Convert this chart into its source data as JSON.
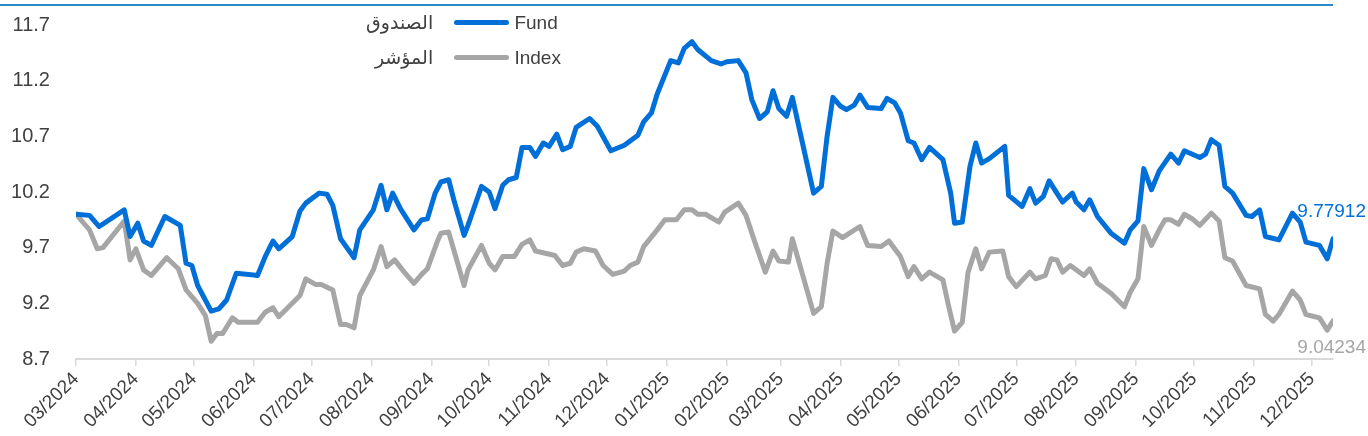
{
  "chart_data": {
    "type": "line",
    "xlim": [
      "2024-03-01",
      "2025-12-12"
    ],
    "xticks": [
      {
        "value": "2024-03-01",
        "label": "03/2024"
      },
      {
        "value": "2024-04-01",
        "label": "04/2024"
      },
      {
        "value": "2024-05-01",
        "label": "05/2024"
      },
      {
        "value": "2024-06-01",
        "label": "06/2024"
      },
      {
        "value": "2024-07-01",
        "label": "07/2024"
      },
      {
        "value": "2024-08-01",
        "label": "08/2024"
      },
      {
        "value": "2024-09-01",
        "label": "09/2024"
      },
      {
        "value": "2024-10-01",
        "label": "10/2024"
      },
      {
        "value": "2024-11-01",
        "label": "11/2024"
      },
      {
        "value": "2024-12-01",
        "label": "12/2024"
      },
      {
        "value": "2025-01-01",
        "label": "01/2025"
      },
      {
        "value": "2025-02-01",
        "label": "02/2025"
      },
      {
        "value": "2025-03-01",
        "label": "03/2025"
      },
      {
        "value": "2025-04-01",
        "label": "04/2025"
      },
      {
        "value": "2025-05-01",
        "label": "05/2025"
      },
      {
        "value": "2025-06-01",
        "label": "06/2025"
      },
      {
        "value": "2025-07-01",
        "label": "07/2025"
      },
      {
        "value": "2025-08-01",
        "label": "08/2025"
      },
      {
        "value": "2025-09-01",
        "label": "09/2025"
      },
      {
        "value": "2025-10-01",
        "label": "10/2025"
      },
      {
        "value": "2025-11-01",
        "label": "11/2025"
      },
      {
        "value": "2025-12-01",
        "label": "12/2025"
      }
    ],
    "ylim": [
      8.7,
      11.7
    ],
    "yticks": [
      8.7,
      9.2,
      9.7,
      10.2,
      10.7,
      11.2,
      11.7
    ],
    "legend": "top left",
    "series": [
      {
        "name": "الصندوق Fund",
        "color": "#0070d8",
        "x": [
          "2024-03-01",
          "2024-03-08",
          "2024-03-13",
          "2024-03-26",
          "2024-03-29",
          "2024-04-02",
          "2024-04-05",
          "2024-04-09",
          "2024-04-16",
          "2024-04-24",
          "2024-04-27",
          "2024-04-30",
          "2024-05-03",
          "2024-05-10",
          "2024-05-14",
          "2024-05-18",
          "2024-05-23",
          "2024-06-03",
          "2024-06-07",
          "2024-06-11",
          "2024-06-14",
          "2024-06-21",
          "2024-06-25",
          "2024-06-28",
          "2024-07-05",
          "2024-07-09",
          "2024-07-12",
          "2024-07-16",
          "2024-07-23",
          "2024-07-26",
          "2024-08-02",
          "2024-08-06",
          "2024-08-09",
          "2024-08-12",
          "2024-08-16",
          "2024-08-23",
          "2024-08-27",
          "2024-08-30",
          "2024-09-03",
          "2024-09-06",
          "2024-09-10",
          "2024-09-13",
          "2024-09-18",
          "2024-09-20",
          "2024-09-27",
          "2024-10-01",
          "2024-10-04",
          "2024-10-08",
          "2024-10-11",
          "2024-10-15",
          "2024-10-18",
          "2024-10-22",
          "2024-10-25",
          "2024-10-29",
          "2024-11-01",
          "2024-11-05",
          "2024-11-08",
          "2024-11-12",
          "2024-11-15",
          "2024-11-22",
          "2024-11-26",
          "2024-12-03",
          "2024-12-10",
          "2024-12-17",
          "2024-12-20",
          "2024-12-24",
          "2024-12-27",
          "2025-01-03",
          "2025-01-07",
          "2025-01-10",
          "2025-01-14",
          "2025-01-17",
          "2025-01-24",
          "2025-01-29",
          "2025-02-01",
          "2025-02-07",
          "2025-02-11",
          "2025-02-14",
          "2025-02-18",
          "2025-02-22",
          "2025-02-25",
          "2025-02-28",
          "2025-03-04",
          "2025-03-07",
          "2025-03-18",
          "2025-03-22",
          "2025-03-25",
          "2025-03-28",
          "2025-04-01",
          "2025-04-04",
          "2025-04-08",
          "2025-04-11",
          "2025-04-15",
          "2025-04-22",
          "2025-04-25",
          "2025-04-29",
          "2025-05-02",
          "2025-05-06",
          "2025-05-09",
          "2025-05-13",
          "2025-05-17",
          "2025-05-24",
          "2025-05-28",
          "2025-05-30",
          "2025-06-03",
          "2025-06-07",
          "2025-06-10",
          "2025-06-13",
          "2025-06-17",
          "2025-06-25",
          "2025-06-27",
          "2025-07-04",
          "2025-07-08",
          "2025-07-11",
          "2025-07-15",
          "2025-07-18",
          "2025-07-22",
          "2025-07-25",
          "2025-07-30",
          "2025-08-01",
          "2025-08-05",
          "2025-08-08",
          "2025-08-12",
          "2025-08-19",
          "2025-08-26",
          "2025-08-29",
          "2025-09-02",
          "2025-09-05",
          "2025-09-09",
          "2025-09-13",
          "2025-09-19",
          "2025-09-23",
          "2025-09-26",
          "2025-10-04",
          "2025-10-07",
          "2025-10-10",
          "2025-10-14",
          "2025-10-17",
          "2025-10-21",
          "2025-10-28",
          "2025-10-31",
          "2025-11-04",
          "2025-11-07",
          "2025-11-14",
          "2025-11-21",
          "2025-11-25",
          "2025-11-28",
          "2025-12-05",
          "2025-12-09",
          "2025-12-12"
        ],
        "values": [
          10.0,
          9.99,
          9.89,
          10.04,
          9.8,
          9.92,
          9.76,
          9.72,
          9.98,
          9.9,
          9.56,
          9.54,
          9.36,
          9.13,
          9.15,
          9.23,
          9.47,
          9.45,
          9.62,
          9.76,
          9.69,
          9.8,
          10.03,
          10.1,
          10.19,
          10.18,
          10.08,
          9.78,
          9.61,
          9.86,
          10.04,
          10.26,
          10.04,
          10.19,
          10.05,
          9.86,
          9.95,
          9.96,
          10.19,
          10.29,
          10.31,
          10.11,
          9.81,
          9.9,
          10.25,
          10.2,
          10.05,
          10.26,
          10.31,
          10.33,
          10.6,
          10.6,
          10.52,
          10.64,
          10.61,
          10.72,
          10.58,
          10.61,
          10.78,
          10.86,
          10.79,
          10.57,
          10.62,
          10.71,
          10.83,
          10.91,
          11.08,
          11.38,
          11.36,
          11.49,
          11.55,
          11.48,
          11.38,
          11.35,
          11.37,
          11.38,
          11.27,
          11.03,
          10.86,
          10.92,
          11.11,
          10.95,
          10.88,
          11.05,
          10.19,
          10.25,
          10.7,
          11.05,
          10.97,
          10.94,
          10.98,
          11.07,
          10.96,
          10.95,
          11.04,
          11.0,
          10.91,
          10.66,
          10.64,
          10.49,
          10.6,
          10.49,
          10.19,
          9.92,
          9.93,
          10.43,
          10.64,
          10.46,
          10.5,
          10.61,
          10.17,
          10.07,
          10.23,
          10.1,
          10.16,
          10.3,
          10.19,
          10.11,
          10.19,
          10.11,
          10.04,
          10.13,
          9.98,
          9.83,
          9.74,
          9.86,
          9.94,
          10.41,
          10.22,
          10.39,
          10.54,
          10.46,
          10.57,
          10.51,
          10.54,
          10.67,
          10.62,
          10.25,
          10.19,
          9.99,
          9.98,
          10.04,
          9.8,
          9.77,
          10.01,
          9.93,
          9.75,
          9.72,
          9.6,
          9.77912
        ],
        "value_labels": [
          null,
          null,
          null,
          null,
          null,
          null,
          null,
          null,
          null,
          null,
          null,
          null,
          null,
          null,
          null,
          null,
          null,
          null,
          null,
          null,
          null,
          null,
          null,
          null,
          null,
          null,
          null,
          null,
          null,
          null,
          null,
          null,
          null,
          null,
          null,
          null,
          null,
          null,
          null,
          null,
          null,
          null,
          null,
          null,
          null,
          null,
          null,
          null,
          null,
          null,
          null,
          null,
          null,
          null,
          null,
          null,
          null,
          null,
          null,
          null,
          null,
          null,
          null,
          null,
          null,
          null,
          null,
          null,
          null,
          null,
          null,
          null,
          null,
          null,
          null,
          null,
          null,
          null,
          null,
          null,
          null,
          null,
          null,
          null,
          null,
          null,
          null,
          null,
          null,
          null,
          null,
          null,
          null,
          null,
          null,
          null,
          null,
          null,
          null,
          null,
          null,
          null,
          null,
          null,
          null,
          null,
          null,
          null,
          null,
          null,
          null,
          null,
          null,
          null,
          null,
          null,
          null,
          null,
          null,
          null,
          null,
          null,
          null,
          null,
          null,
          null,
          null,
          null,
          null,
          null,
          null,
          null,
          null,
          null,
          null,
          null,
          null,
          null,
          null,
          null,
          null,
          null,
          null,
          null,
          null,
          null,
          null,
          null,
          null,
          "9.77912"
        ]
      },
      {
        "name": "المؤشر Index",
        "color": "#a6a6a6",
        "x": [
          "2024-03-01",
          "2024-03-08",
          "2024-03-12",
          "2024-03-15",
          "2024-03-26",
          "2024-03-29",
          "2024-04-01",
          "2024-04-05",
          "2024-04-09",
          "2024-04-17",
          "2024-04-23",
          "2024-04-27",
          "2024-05-03",
          "2024-05-07",
          "2024-05-10",
          "2024-05-13",
          "2024-05-16",
          "2024-05-21",
          "2024-05-24",
          "2024-06-03",
          "2024-06-07",
          "2024-06-11",
          "2024-06-14",
          "2024-06-21",
          "2024-06-25",
          "2024-06-28",
          "2024-07-03",
          "2024-07-06",
          "2024-07-12",
          "2024-07-16",
          "2024-07-19",
          "2024-07-23",
          "2024-07-26",
          "2024-08-02",
          "2024-08-06",
          "2024-08-09",
          "2024-08-13",
          "2024-08-18",
          "2024-08-23",
          "2024-08-27",
          "2024-08-30",
          "2024-09-04",
          "2024-09-06",
          "2024-09-10",
          "2024-09-18",
          "2024-09-20",
          "2024-09-27",
          "2024-10-01",
          "2024-10-04",
          "2024-10-08",
          "2024-10-14",
          "2024-10-18",
          "2024-10-22",
          "2024-10-25",
          "2024-11-04",
          "2024-11-08",
          "2024-11-12",
          "2024-11-15",
          "2024-11-19",
          "2024-11-25",
          "2024-11-29",
          "2024-12-04",
          "2024-12-10",
          "2024-12-13",
          "2024-12-17",
          "2024-12-20",
          "2024-12-27",
          "2024-12-31",
          "2025-01-06",
          "2025-01-10",
          "2025-01-14",
          "2025-01-17",
          "2025-01-21",
          "2025-01-28",
          "2025-01-31",
          "2025-02-07",
          "2025-02-11",
          "2025-02-15",
          "2025-02-21",
          "2025-02-25",
          "2025-02-28",
          "2025-03-05",
          "2025-03-07",
          "2025-03-18",
          "2025-03-22",
          "2025-03-25",
          "2025-03-28",
          "2025-04-02",
          "2025-04-11",
          "2025-04-15",
          "2025-04-22",
          "2025-04-26",
          "2025-05-02",
          "2025-05-06",
          "2025-05-09",
          "2025-05-13",
          "2025-05-17",
          "2025-05-24",
          "2025-05-27",
          "2025-05-30",
          "2025-06-03",
          "2025-06-06",
          "2025-06-10",
          "2025-06-13",
          "2025-06-17",
          "2025-06-24",
          "2025-06-27",
          "2025-07-01",
          "2025-07-08",
          "2025-07-11",
          "2025-07-16",
          "2025-07-19",
          "2025-07-22",
          "2025-07-25",
          "2025-07-29",
          "2025-08-05",
          "2025-08-08",
          "2025-08-12",
          "2025-08-19",
          "2025-08-26",
          "2025-08-29",
          "2025-09-02",
          "2025-09-05",
          "2025-09-09",
          "2025-09-13",
          "2025-09-16",
          "2025-09-19",
          "2025-09-23",
          "2025-09-26",
          "2025-09-30",
          "2025-10-04",
          "2025-10-10",
          "2025-10-14",
          "2025-10-17",
          "2025-10-21",
          "2025-10-28",
          "2025-11-04",
          "2025-11-07",
          "2025-11-11",
          "2025-11-14",
          "2025-11-21",
          "2025-11-25",
          "2025-11-28",
          "2025-12-05",
          "2025-12-09",
          "2025-12-12"
        ],
        "values": [
          10.0,
          9.86,
          9.69,
          9.7,
          9.94,
          9.59,
          9.69,
          9.5,
          9.45,
          9.61,
          9.51,
          9.32,
          9.2,
          9.09,
          8.86,
          8.93,
          8.93,
          9.07,
          9.03,
          9.03,
          9.12,
          9.16,
          9.08,
          9.2,
          9.27,
          9.42,
          9.37,
          9.37,
          9.32,
          9.01,
          9.01,
          8.98,
          9.27,
          9.5,
          9.71,
          9.53,
          9.59,
          9.48,
          9.38,
          9.46,
          9.51,
          9.75,
          9.83,
          9.84,
          9.36,
          9.5,
          9.72,
          9.56,
          9.5,
          9.62,
          9.62,
          9.73,
          9.77,
          9.67,
          9.63,
          9.54,
          9.56,
          9.66,
          9.69,
          9.67,
          9.54,
          9.46,
          9.49,
          9.54,
          9.57,
          9.71,
          9.86,
          9.95,
          9.95,
          10.04,
          10.04,
          10.0,
          10.0,
          9.93,
          10.02,
          10.1,
          9.99,
          9.78,
          9.48,
          9.67,
          9.58,
          9.57,
          9.78,
          9.11,
          9.17,
          9.56,
          9.85,
          9.79,
          9.89,
          9.72,
          9.71,
          9.76,
          9.62,
          9.44,
          9.53,
          9.42,
          9.48,
          9.41,
          9.17,
          8.95,
          9.03,
          9.48,
          9.69,
          9.51,
          9.66,
          9.67,
          9.44,
          9.35,
          9.48,
          9.42,
          9.45,
          9.6,
          9.59,
          9.48,
          9.54,
          9.45,
          9.51,
          9.38,
          9.29,
          9.17,
          9.3,
          9.42,
          9.89,
          9.72,
          9.86,
          9.95,
          9.95,
          9.91,
          10.0,
          9.96,
          9.9,
          10.01,
          9.94,
          9.61,
          9.58,
          9.36,
          9.33,
          9.1,
          9.04,
          9.1,
          9.31,
          9.23,
          9.1,
          9.07,
          8.96,
          9.04234
        ],
        "value_labels": [
          null,
          null,
          null,
          null,
          null,
          null,
          null,
          null,
          null,
          null,
          null,
          null,
          null,
          null,
          null,
          null,
          null,
          null,
          null,
          null,
          null,
          null,
          null,
          null,
          null,
          null,
          null,
          null,
          null,
          null,
          null,
          null,
          null,
          null,
          null,
          null,
          null,
          null,
          null,
          null,
          null,
          null,
          null,
          null,
          null,
          null,
          null,
          null,
          null,
          null,
          null,
          null,
          null,
          null,
          null,
          null,
          null,
          null,
          null,
          null,
          null,
          null,
          null,
          null,
          null,
          null,
          null,
          null,
          null,
          null,
          null,
          null,
          null,
          null,
          null,
          null,
          null,
          null,
          null,
          null,
          null,
          null,
          null,
          null,
          null,
          null,
          null,
          null,
          null,
          null,
          null,
          null,
          null,
          null,
          null,
          null,
          null,
          null,
          null,
          null,
          null,
          null,
          null,
          null,
          null,
          null,
          null,
          null,
          null,
          null,
          null,
          null,
          null,
          null,
          null,
          null,
          null,
          null,
          null,
          null,
          null,
          null,
          null,
          null,
          null,
          null,
          null,
          null,
          null,
          null,
          null,
          null,
          null,
          null,
          null,
          null,
          null,
          null,
          null,
          null,
          null,
          null,
          null,
          null,
          null,
          "9.04234"
        ]
      }
    ]
  }
}
